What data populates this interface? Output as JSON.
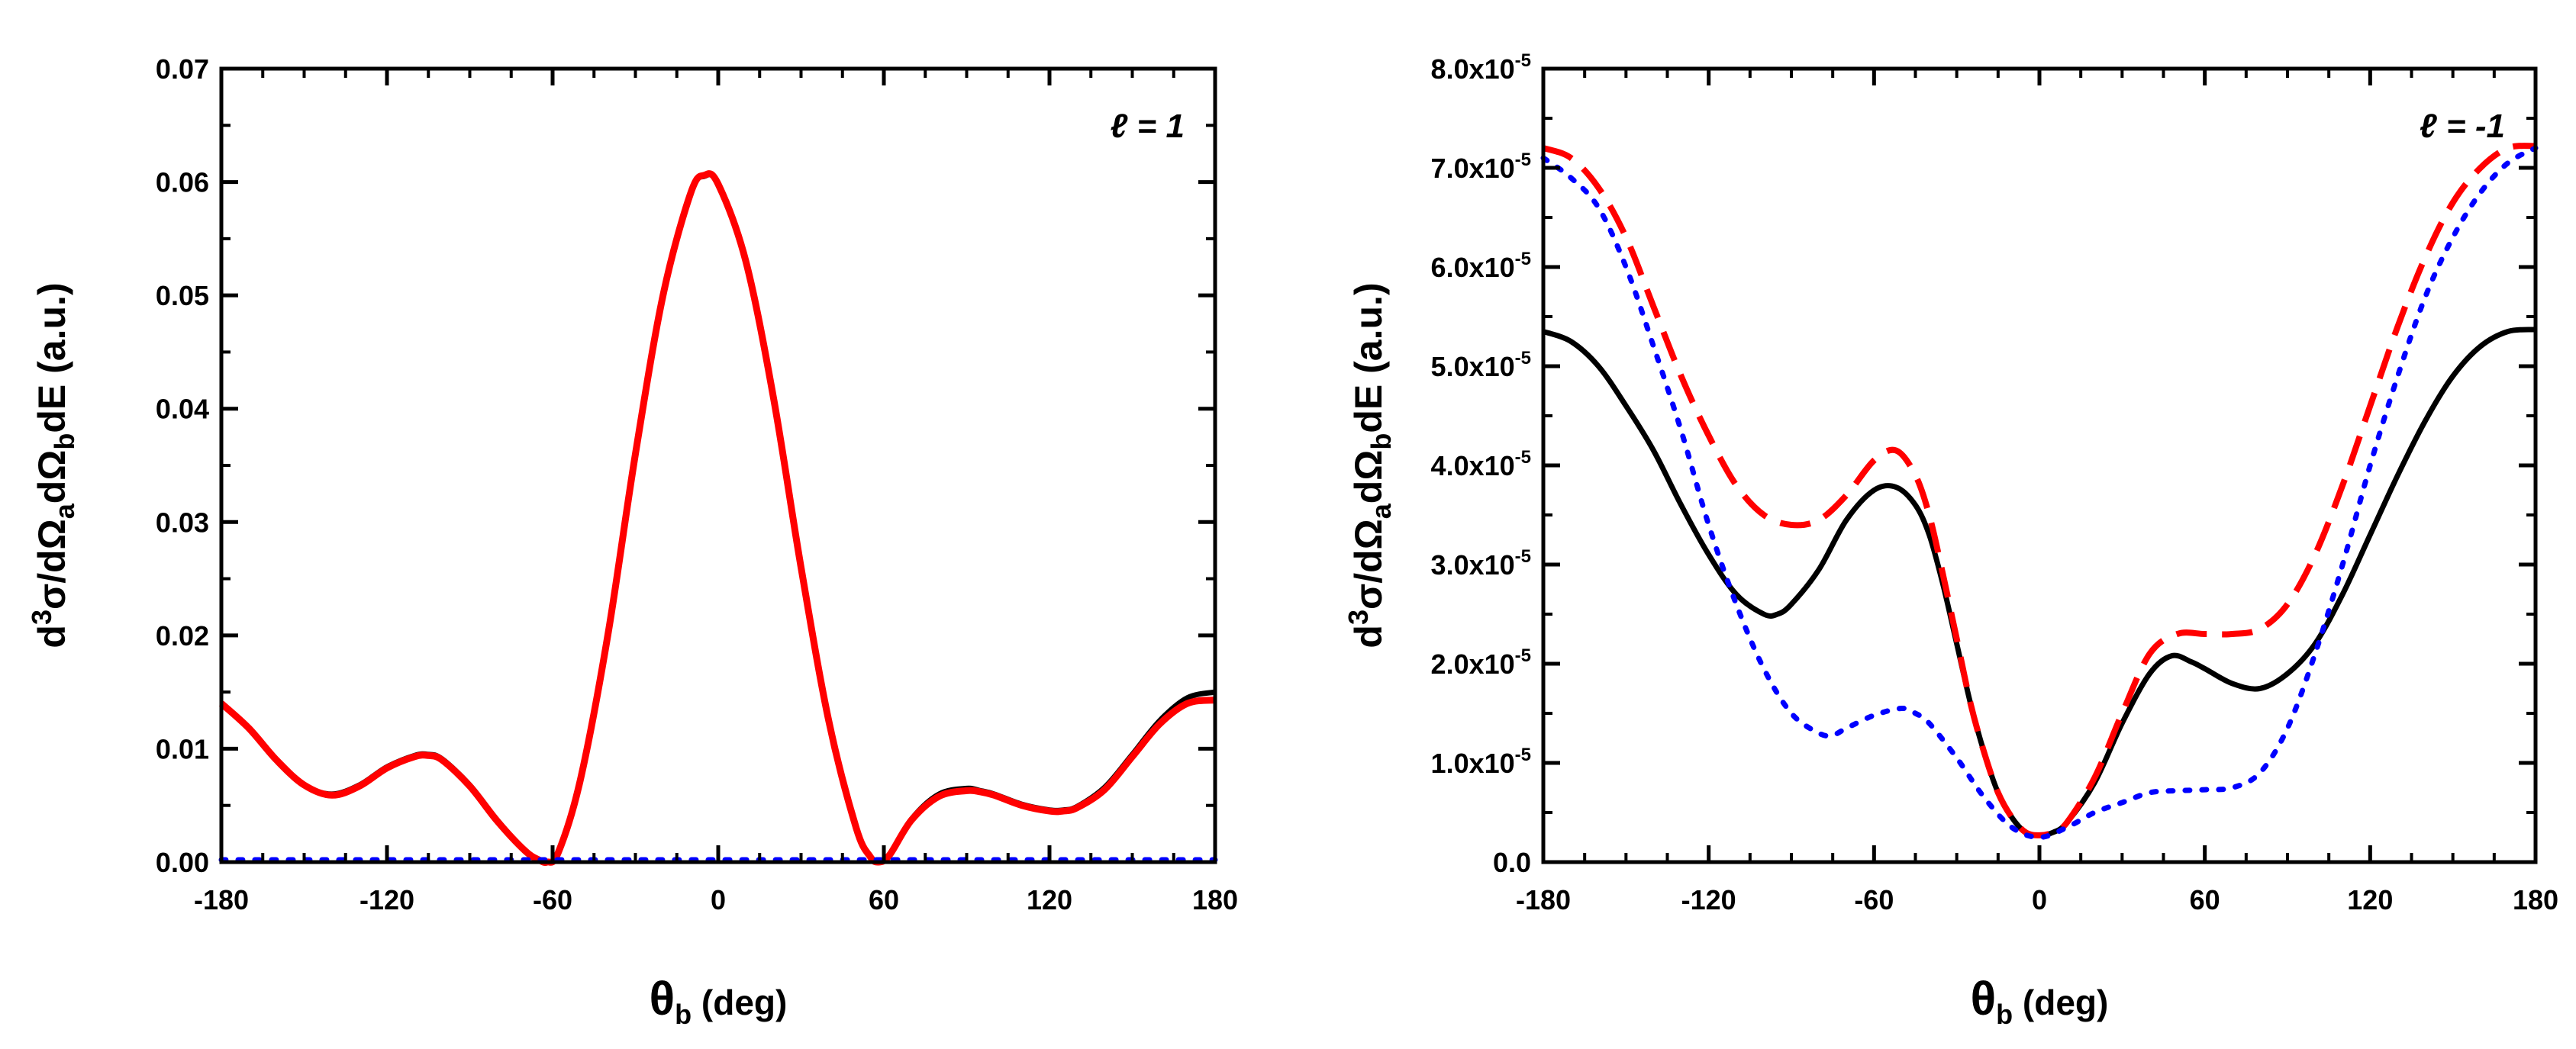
{
  "chart_data": [
    {
      "type": "line",
      "panel": "left",
      "panel_label": "ℓ = 1",
      "xlabel": {
        "main": "θ",
        "sub": "b",
        "tail": " (deg)"
      },
      "ylabel": {
        "a": "d",
        "b": "3",
        "c": "σ/dΩ",
        "d": "a",
        "e": "dΩ",
        "f": "b",
        "g": "dE (a.u.)"
      },
      "xlim": [
        -180,
        180
      ],
      "ylim": [
        0,
        0.07
      ],
      "xticks": [
        -180,
        -120,
        -60,
        0,
        60,
        120,
        180
      ],
      "xtick_labels": [
        "-180",
        "-120",
        "-60",
        "0",
        "60",
        "120",
        "180"
      ],
      "yticks": [
        0,
        0.01,
        0.02,
        0.03,
        0.04,
        0.05,
        0.06,
        0.07
      ],
      "ytick_labels": [
        "0.00",
        "0.01",
        "0.02",
        "0.03",
        "0.04",
        "0.05",
        "0.06",
        "0.07"
      ],
      "series": [
        {
          "name": "black-solid",
          "color": "#000000",
          "style": "solid",
          "x": [
            -180,
            -170,
            -160,
            -150,
            -140,
            -130,
            -120,
            -110,
            -105,
            -100,
            -90,
            -80,
            -70,
            -65,
            -62,
            -58,
            -50,
            -40,
            -30,
            -20,
            -10,
            -5,
            0,
            10,
            20,
            30,
            40,
            50,
            55,
            58,
            62,
            70,
            80,
            90,
            95,
            100,
            110,
            120,
            125,
            130,
            140,
            150,
            160,
            170,
            180
          ],
          "y": [
            0.014,
            0.0118,
            0.009,
            0.0068,
            0.006,
            0.0068,
            0.0084,
            0.0094,
            0.0095,
            0.0091,
            0.0068,
            0.0037,
            0.001,
            0.0002,
            0.0,
            0.0008,
            0.0072,
            0.02,
            0.036,
            0.05,
            0.059,
            0.0605,
            0.0598,
            0.053,
            0.041,
            0.026,
            0.0125,
            0.003,
            0.0005,
            0.0,
            0.0006,
            0.0038,
            0.006,
            0.0065,
            0.0063,
            0.006,
            0.0051,
            0.0046,
            0.0046,
            0.0049,
            0.0066,
            0.0095,
            0.0125,
            0.0145,
            0.015
          ]
        },
        {
          "name": "red-dashed",
          "color": "#ff0000",
          "style": "solid",
          "x": [
            -180,
            -170,
            -160,
            -150,
            -140,
            -130,
            -120,
            -110,
            -105,
            -100,
            -90,
            -80,
            -70,
            -65,
            -62,
            -58,
            -50,
            -40,
            -30,
            -20,
            -10,
            -5,
            0,
            10,
            20,
            30,
            40,
            50,
            55,
            58,
            62,
            70,
            80,
            90,
            95,
            100,
            110,
            120,
            125,
            130,
            140,
            150,
            160,
            170,
            180
          ],
          "y": [
            0.014,
            0.0118,
            0.009,
            0.0068,
            0.0059,
            0.0067,
            0.0083,
            0.0093,
            0.0094,
            0.009,
            0.0067,
            0.0036,
            0.001,
            0.0002,
            0.0,
            0.0008,
            0.0072,
            0.02,
            0.036,
            0.05,
            0.059,
            0.0606,
            0.0598,
            0.053,
            0.041,
            0.026,
            0.0125,
            0.003,
            0.0005,
            0.0,
            0.0006,
            0.0037,
            0.0058,
            0.0063,
            0.0062,
            0.0059,
            0.005,
            0.0045,
            0.0045,
            0.0048,
            0.0064,
            0.0093,
            0.0122,
            0.014,
            0.0143
          ]
        },
        {
          "name": "blue-dotted",
          "color": "#0000ff",
          "style": "dotted",
          "x": [
            -180,
            180
          ],
          "y": [
            0.0002,
            0.0002
          ]
        }
      ]
    },
    {
      "type": "line",
      "panel": "right",
      "panel_label": "ℓ = -1",
      "xlabel": {
        "main": "θ",
        "sub": "b",
        "tail": " (deg)"
      },
      "ylabel": {
        "a": "d",
        "b": "3",
        "c": "σ/dΩ",
        "d": "a",
        "e": "dΩ",
        "f": "b",
        "g": "dE (a.u.)"
      },
      "xlim": [
        -180,
        180
      ],
      "ylim": [
        0,
        8e-05
      ],
      "xticks": [
        -180,
        -120,
        -60,
        0,
        60,
        120,
        180
      ],
      "xtick_labels": [
        "-180",
        "-120",
        "-60",
        "0",
        "60",
        "120",
        "180"
      ],
      "yticks": [
        0,
        1e-05,
        2e-05,
        3e-05,
        4e-05,
        5e-05,
        6e-05,
        7e-05,
        8e-05
      ],
      "ytick_labels": [
        "0.0",
        "1.0x10",
        "2.0x10",
        "3.0x10",
        "4.0x10",
        "5.0x10",
        "6.0x10",
        "7.0x10",
        "8.0x10"
      ],
      "ytick_exponents": [
        "",
        "-5",
        "-5",
        "-5",
        "-5",
        "-5",
        "-5",
        "-5",
        "-5"
      ],
      "series": [
        {
          "name": "black-solid",
          "color": "#000000",
          "style": "solid",
          "x": [
            -180,
            -170,
            -160,
            -150,
            -140,
            -130,
            -120,
            -110,
            -100,
            -95,
            -90,
            -80,
            -70,
            -60,
            -52,
            -45,
            -40,
            -35,
            -30,
            -25,
            -20,
            -15,
            -10,
            -5,
            0,
            5,
            10,
            20,
            30,
            40,
            48,
            55,
            60,
            70,
            80,
            90,
            100,
            110,
            120,
            130,
            140,
            150,
            160,
            170,
            180
          ],
          "y": [
            5.35,
            5.25,
            5.0,
            4.6,
            4.15,
            3.6,
            3.1,
            2.7,
            2.5,
            2.5,
            2.6,
            2.95,
            3.45,
            3.75,
            3.78,
            3.6,
            3.3,
            2.8,
            2.2,
            1.6,
            1.1,
            0.7,
            0.45,
            0.3,
            0.27,
            0.3,
            0.4,
            0.8,
            1.4,
            1.9,
            2.08,
            2.02,
            1.95,
            1.8,
            1.75,
            1.9,
            2.2,
            2.7,
            3.3,
            3.9,
            4.45,
            4.9,
            5.2,
            5.35,
            5.37
          ]
        },
        {
          "name": "red-dashed",
          "color": "#ff0000",
          "style": "dashed",
          "x": [
            -180,
            -170,
            -160,
            -150,
            -140,
            -130,
            -120,
            -110,
            -100,
            -90,
            -80,
            -70,
            -60,
            -52,
            -45,
            -40,
            -35,
            -30,
            -25,
            -20,
            -15,
            -10,
            -5,
            0,
            5,
            10,
            20,
            30,
            40,
            50,
            60,
            70,
            80,
            90,
            100,
            110,
            120,
            130,
            140,
            150,
            160,
            170,
            180
          ],
          "y": [
            7.2,
            7.1,
            6.8,
            6.3,
            5.6,
            4.9,
            4.3,
            3.8,
            3.5,
            3.4,
            3.45,
            3.7,
            4.05,
            4.15,
            3.9,
            3.5,
            2.9,
            2.25,
            1.6,
            1.1,
            0.7,
            0.45,
            0.3,
            0.27,
            0.3,
            0.4,
            0.85,
            1.5,
            2.1,
            2.3,
            2.3,
            2.3,
            2.35,
            2.6,
            3.1,
            3.8,
            4.6,
            5.4,
            6.1,
            6.65,
            7.0,
            7.2,
            7.22
          ]
        },
        {
          "name": "blue-dotted",
          "color": "#0000ff",
          "style": "dotted",
          "x": [
            -180,
            -170,
            -160,
            -150,
            -140,
            -130,
            -120,
            -110,
            -100,
            -90,
            -80,
            -75,
            -70,
            -60,
            -50,
            -45,
            -40,
            -30,
            -20,
            -10,
            0,
            10,
            20,
            30,
            40,
            50,
            60,
            70,
            80,
            90,
            100,
            110,
            120,
            130,
            140,
            150,
            160,
            170,
            180
          ],
          "y": [
            7.1,
            6.9,
            6.6,
            6.0,
            5.2,
            4.35,
            3.4,
            2.6,
            1.95,
            1.5,
            1.3,
            1.28,
            1.35,
            1.48,
            1.55,
            1.5,
            1.4,
            1.05,
            0.65,
            0.35,
            0.25,
            0.35,
            0.5,
            0.6,
            0.7,
            0.72,
            0.73,
            0.75,
            0.9,
            1.35,
            2.1,
            3.0,
            4.0,
            4.9,
            5.7,
            6.3,
            6.75,
            7.05,
            7.2
          ]
        }
      ],
      "series_scale": 1e-05
    }
  ]
}
